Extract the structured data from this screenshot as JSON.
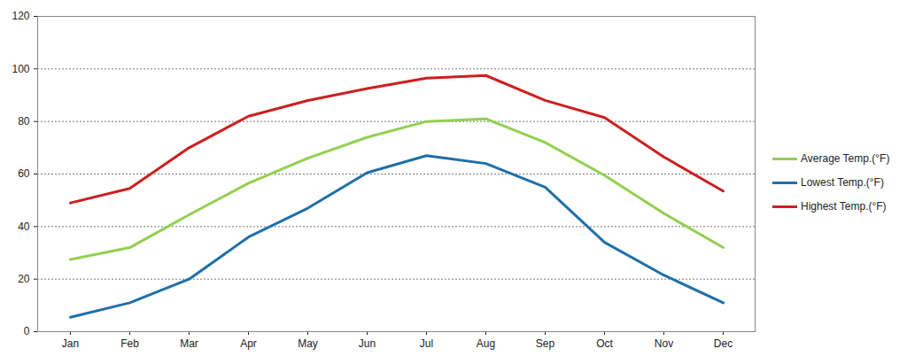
{
  "chart_data": {
    "type": "line",
    "categories": [
      "Jan",
      "Feb",
      "Mar",
      "Apr",
      "May",
      "Jun",
      "Jul",
      "Aug",
      "Sep",
      "Oct",
      "Nov",
      "Dec"
    ],
    "series": [
      {
        "name": "Average Temp.(°F)",
        "color": "#92d050",
        "values": [
          27.5,
          32,
          44.5,
          56.5,
          66,
          74,
          80,
          81,
          72,
          59.5,
          45,
          32
        ]
      },
      {
        "name": "Lowest Temp.(°F)",
        "color": "#1f6fa8",
        "values": [
          5.5,
          11,
          20,
          36,
          47,
          60.5,
          67,
          64,
          55,
          34,
          21.5,
          11
        ]
      },
      {
        "name": "Highest Temp.(°F)",
        "color": "#cc1f1f",
        "values": [
          49,
          54.5,
          70,
          82,
          88,
          92.5,
          96.5,
          97.5,
          88,
          81.5,
          66.5,
          53.5
        ]
      }
    ],
    "ylim": [
      0,
      120
    ],
    "yticks": [
      0,
      20,
      40,
      60,
      80,
      100,
      120
    ],
    "grid": true,
    "legend": "right"
  }
}
